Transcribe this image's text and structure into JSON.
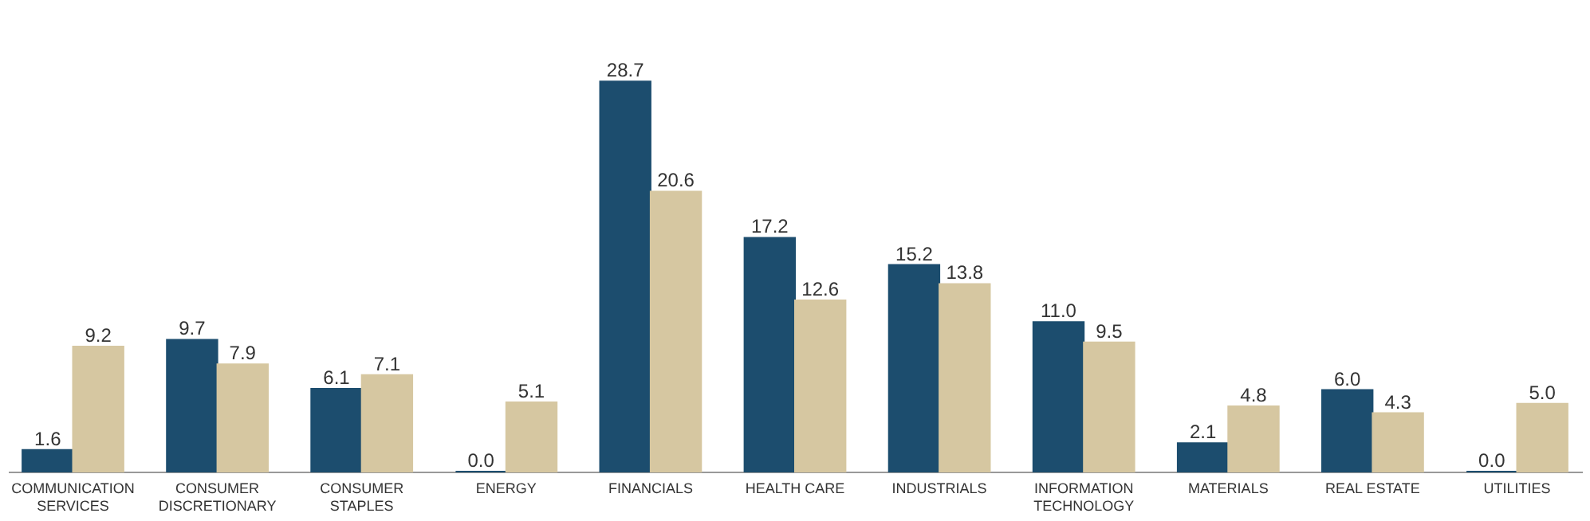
{
  "chart_data": {
    "type": "bar",
    "categories": [
      "COMMUNICATION SERVICES",
      "CONSUMER DISCRETIONARY",
      "CONSUMER STAPLES",
      "ENERGY",
      "FINANCIALS",
      "HEALTH CARE",
      "INDUSTRIALS",
      "INFORMATION TECHNOLOGY",
      "MATERIALS",
      "REAL ESTATE",
      "UTILITIES"
    ],
    "series": [
      {
        "color": "#1c4d6e",
        "values": [
          1.6,
          9.7,
          6.1,
          0.0,
          28.7,
          17.2,
          15.2,
          11.0,
          2.1,
          6.0,
          0.0
        ],
        "value_labels": [
          "1.6",
          "9.7",
          "6.1",
          "0.0",
          "28.7",
          "17.2",
          "15.2",
          "11.0",
          "2.1",
          "6.0",
          "0.0"
        ]
      },
      {
        "color": "#d6c7a1",
        "values": [
          9.2,
          7.9,
          7.1,
          5.1,
          20.6,
          12.6,
          13.8,
          9.5,
          4.8,
          4.3,
          5.0
        ],
        "value_labels": [
          "9.2",
          "7.9",
          "7.1",
          "5.1",
          "20.6",
          "12.6",
          "13.8",
          "9.5",
          "4.8",
          "4.3",
          "5.0"
        ]
      }
    ],
    "grid": false
  }
}
